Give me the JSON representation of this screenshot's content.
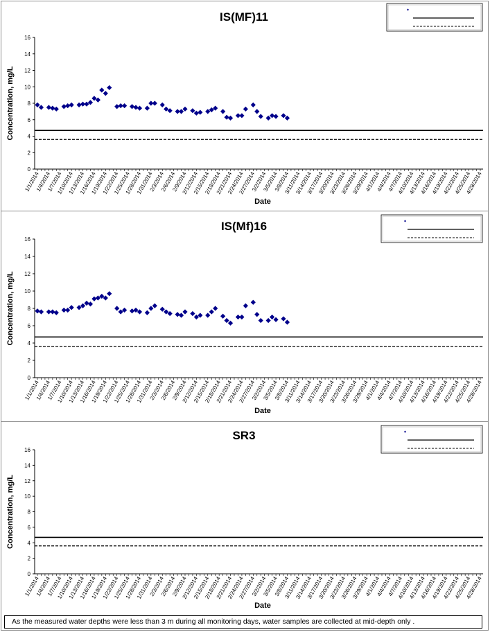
{
  "chart_data": [
    {
      "type": "scatter",
      "title": "IS(MF)11",
      "xlabel": "Date",
      "ylabel": "Concentration, mg/L",
      "ylim": [
        0,
        16
      ],
      "yticks": [
        "0",
        "2",
        "4",
        "6",
        "8",
        "10",
        "12",
        "14",
        "16"
      ],
      "xticklabels": [
        "1/1/2014",
        "1/4/2014",
        "1/7/2014",
        "1/10/2014",
        "1/13/2014",
        "1/16/2014",
        "1/19/2014",
        "1/22/2014",
        "1/25/2014",
        "1/28/2014",
        "1/31/2014",
        "2/3/2014",
        "2/6/2014",
        "2/9/2014",
        "2/12/2014",
        "2/15/2014",
        "2/18/2014",
        "2/21/2014",
        "2/24/2014",
        "2/27/2014",
        "3/2/2014",
        "3/5/2014",
        "3/8/2014",
        "3/11/2014",
        "3/14/2014",
        "3/17/2014",
        "3/20/2014",
        "3/23/2014",
        "3/26/2014",
        "3/29/2014",
        "4/1/2014",
        "4/4/2014",
        "4/7/2014",
        "4/10/2014",
        "4/13/2014",
        "4/16/2014",
        "4/19/2014",
        "4/22/2014",
        "4/25/2014",
        "4/28/2014"
      ],
      "legend_position": "top-right",
      "points": [
        [
          "1/1/2014",
          7.8
        ],
        [
          "1/2/2014",
          7.5
        ],
        [
          "1/4/2014",
          7.5
        ],
        [
          "1/5/2014",
          7.4
        ],
        [
          "1/6/2014",
          7.3
        ],
        [
          "1/8/2014",
          7.6
        ],
        [
          "1/9/2014",
          7.7
        ],
        [
          "1/10/2014",
          7.8
        ],
        [
          "1/12/2014",
          7.8
        ],
        [
          "1/13/2014",
          7.9
        ],
        [
          "1/14/2014",
          7.9
        ],
        [
          "1/15/2014",
          8.1
        ],
        [
          "1/16/2014",
          8.6
        ],
        [
          "1/17/2014",
          8.4
        ],
        [
          "1/18/2014",
          9.6
        ],
        [
          "1/19/2014",
          9.2
        ],
        [
          "1/20/2014",
          9.9
        ],
        [
          "1/22/2014",
          7.6
        ],
        [
          "1/23/2014",
          7.7
        ],
        [
          "1/24/2014",
          7.7
        ],
        [
          "1/26/2014",
          7.6
        ],
        [
          "1/27/2014",
          7.5
        ],
        [
          "1/28/2014",
          7.4
        ],
        [
          "1/30/2014",
          7.4
        ],
        [
          "1/31/2014",
          8.0
        ],
        [
          "2/1/2014",
          8.0
        ],
        [
          "2/3/2014",
          7.8
        ],
        [
          "2/4/2014",
          7.3
        ],
        [
          "2/5/2014",
          7.1
        ],
        [
          "2/7/2014",
          7.0
        ],
        [
          "2/8/2014",
          7.0
        ],
        [
          "2/9/2014",
          7.3
        ],
        [
          "2/11/2014",
          7.1
        ],
        [
          "2/12/2014",
          6.8
        ],
        [
          "2/13/2014",
          6.9
        ],
        [
          "2/15/2014",
          7.0
        ],
        [
          "2/16/2014",
          7.2
        ],
        [
          "2/17/2014",
          7.4
        ],
        [
          "2/19/2014",
          7.0
        ],
        [
          "2/20/2014",
          6.3
        ],
        [
          "2/21/2014",
          6.2
        ],
        [
          "2/23/2014",
          6.5
        ],
        [
          "2/24/2014",
          6.5
        ],
        [
          "2/25/2014",
          7.3
        ],
        [
          "2/27/2014",
          7.8
        ],
        [
          "2/28/2014",
          7.0
        ],
        [
          "3/1/2014",
          6.4
        ],
        [
          "3/3/2014",
          6.2
        ],
        [
          "3/4/2014",
          6.5
        ],
        [
          "3/5/2014",
          6.4
        ],
        [
          "3/7/2014",
          6.5
        ],
        [
          "3/8/2014",
          6.2
        ]
      ],
      "reference_lines": [
        {
          "y": 4.7,
          "style": "solid"
        },
        {
          "y": 3.6,
          "style": "dashed"
        }
      ]
    },
    {
      "type": "scatter",
      "title": "IS(Mf)16",
      "xlabel": "Date",
      "ylabel": "Concentration, mg/L",
      "ylim": [
        0,
        16
      ],
      "yticks": [
        "0",
        "2",
        "4",
        "6",
        "8",
        "10",
        "12",
        "14",
        "16"
      ],
      "xticklabels": [
        "1/1/2014",
        "1/4/2014",
        "1/7/2014",
        "1/10/2014",
        "1/13/2014",
        "1/16/2014",
        "1/19/2014",
        "1/22/2014",
        "1/25/2014",
        "1/28/2014",
        "1/31/2014",
        "2/3/2014",
        "2/6/2014",
        "2/9/2014",
        "2/12/2014",
        "2/15/2014",
        "2/18/2014",
        "2/21/2014",
        "2/24/2014",
        "2/27/2014",
        "3/2/2014",
        "3/5/2014",
        "3/8/2014",
        "3/11/2014",
        "3/14/2014",
        "3/17/2014",
        "3/20/2014",
        "3/23/2014",
        "3/26/2014",
        "3/29/2014",
        "4/1/2014",
        "4/4/2014",
        "4/7/2014",
        "4/10/2014",
        "4/13/2014",
        "4/16/2014",
        "4/19/2014",
        "4/22/2014",
        "4/25/2014",
        "4/28/2014"
      ],
      "legend_position": "top-right",
      "points": [
        [
          "1/1/2014",
          7.7
        ],
        [
          "1/2/2014",
          7.6
        ],
        [
          "1/4/2014",
          7.6
        ],
        [
          "1/5/2014",
          7.6
        ],
        [
          "1/6/2014",
          7.5
        ],
        [
          "1/8/2014",
          7.8
        ],
        [
          "1/9/2014",
          7.8
        ],
        [
          "1/10/2014",
          8.1
        ],
        [
          "1/12/2014",
          8.1
        ],
        [
          "1/13/2014",
          8.3
        ],
        [
          "1/14/2014",
          8.6
        ],
        [
          "1/15/2014",
          8.5
        ],
        [
          "1/16/2014",
          9.1
        ],
        [
          "1/17/2014",
          9.2
        ],
        [
          "1/18/2014",
          9.4
        ],
        [
          "1/19/2014",
          9.2
        ],
        [
          "1/20/2014",
          9.7
        ],
        [
          "1/22/2014",
          8.0
        ],
        [
          "1/23/2014",
          7.6
        ],
        [
          "1/24/2014",
          7.8
        ],
        [
          "1/26/2014",
          7.7
        ],
        [
          "1/27/2014",
          7.8
        ],
        [
          "1/28/2014",
          7.6
        ],
        [
          "1/30/2014",
          7.5
        ],
        [
          "1/31/2014",
          8.0
        ],
        [
          "2/1/2014",
          8.3
        ],
        [
          "2/3/2014",
          7.9
        ],
        [
          "2/4/2014",
          7.6
        ],
        [
          "2/5/2014",
          7.4
        ],
        [
          "2/7/2014",
          7.3
        ],
        [
          "2/8/2014",
          7.2
        ],
        [
          "2/9/2014",
          7.6
        ],
        [
          "2/11/2014",
          7.4
        ],
        [
          "2/12/2014",
          7.0
        ],
        [
          "2/13/2014",
          7.2
        ],
        [
          "2/15/2014",
          7.2
        ],
        [
          "2/16/2014",
          7.6
        ],
        [
          "2/17/2014",
          8.0
        ],
        [
          "2/19/2014",
          7.1
        ],
        [
          "2/20/2014",
          6.6
        ],
        [
          "2/21/2014",
          6.3
        ],
        [
          "2/23/2014",
          7.0
        ],
        [
          "2/24/2014",
          7.0
        ],
        [
          "2/25/2014",
          8.3
        ],
        [
          "2/27/2014",
          8.7
        ],
        [
          "2/28/2014",
          7.3
        ],
        [
          "3/1/2014",
          6.6
        ],
        [
          "3/3/2014",
          6.6
        ],
        [
          "3/4/2014",
          7.0
        ],
        [
          "3/5/2014",
          6.7
        ],
        [
          "3/7/2014",
          6.8
        ],
        [
          "3/8/2014",
          6.4
        ]
      ],
      "reference_lines": [
        {
          "y": 4.7,
          "style": "solid"
        },
        {
          "y": 3.6,
          "style": "dashed"
        }
      ]
    },
    {
      "type": "scatter",
      "title": "SR3",
      "xlabel": "Date",
      "ylabel": "Concentration, mg/L",
      "ylim": [
        0,
        16
      ],
      "yticks": [
        "0",
        "2",
        "4",
        "6",
        "8",
        "10",
        "12",
        "14",
        "16"
      ],
      "xticklabels": [
        "1/1/2014",
        "1/4/2014",
        "1/7/2014",
        "1/10/2014",
        "1/13/2014",
        "1/16/2014",
        "1/19/2014",
        "1/22/2014",
        "1/25/2014",
        "1/28/2014",
        "1/31/2014",
        "2/3/2014",
        "2/6/2014",
        "2/9/2014",
        "2/12/2014",
        "2/15/2014",
        "2/18/2014",
        "2/21/2014",
        "2/24/2014",
        "2/27/2014",
        "3/2/2014",
        "3/5/2014",
        "3/8/2014",
        "3/11/2014",
        "3/14/2014",
        "3/17/2014",
        "3/20/2014",
        "3/23/2014",
        "3/26/2014",
        "3/29/2014",
        "4/1/2014",
        "4/4/2014",
        "4/7/2014",
        "4/10/2014",
        "4/13/2014",
        "4/16/2014",
        "4/19/2014",
        "4/22/2014",
        "4/25/2014",
        "4/28/2014"
      ],
      "legend_position": "top-right",
      "points": [],
      "reference_lines": [
        {
          "y": 4.7,
          "style": "solid"
        },
        {
          "y": 3.6,
          "style": "dashed"
        }
      ]
    }
  ],
  "colors": {
    "marker": "#00008B",
    "line": "#000000"
  },
  "note": "As the measured water depths were less than 3 m during all monitoring days, water samples are collected  at mid-depth only ."
}
